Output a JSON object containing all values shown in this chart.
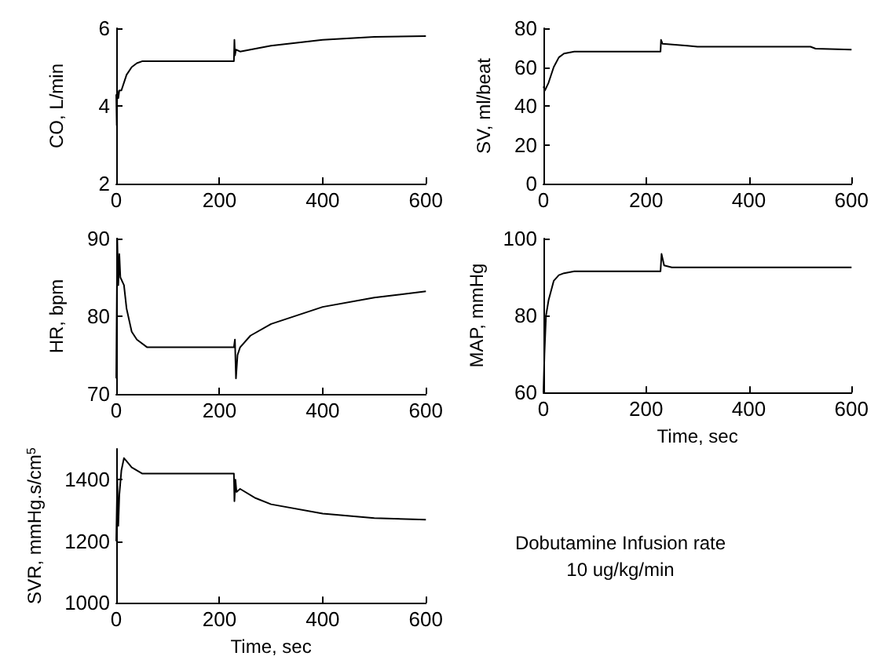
{
  "chart_data": [
    {
      "type": "line",
      "ylabel": "CO, L/min",
      "color": "#000000",
      "xlim": [
        0,
        600
      ],
      "xticks": [
        0,
        200,
        400,
        600
      ],
      "ylim": [
        2,
        6
      ],
      "yticks": [
        2,
        4,
        6
      ],
      "x": [
        0,
        1,
        2,
        4,
        6,
        10,
        20,
        30,
        40,
        50,
        100,
        228,
        229,
        230,
        232,
        240,
        300,
        400,
        500,
        600
      ],
      "values": [
        4.3,
        3.5,
        4.4,
        4.2,
        4.4,
        4.4,
        4.8,
        5.0,
        5.1,
        5.15,
        5.15,
        5.15,
        5.7,
        5.3,
        5.45,
        5.4,
        5.55,
        5.7,
        5.78,
        5.8
      ]
    },
    {
      "type": "line",
      "ylabel": "SV, ml/beat",
      "color": "#000000",
      "xlim": [
        0,
        600
      ],
      "xticks": [
        0,
        200,
        400,
        600
      ],
      "ylim": [
        0,
        80
      ],
      "yticks": [
        0,
        20,
        40,
        60,
        80
      ],
      "x": [
        0,
        3,
        10,
        20,
        30,
        40,
        60,
        228,
        229,
        232,
        280,
        300,
        520,
        530,
        600
      ],
      "values": [
        50,
        48,
        52,
        60,
        65,
        67,
        68,
        68,
        74,
        72,
        71,
        70.5,
        70.5,
        69.5,
        69
      ]
    },
    {
      "type": "line",
      "ylabel": "HR, bpm",
      "color": "#000000",
      "xlim": [
        0,
        600
      ],
      "xticks": [
        0,
        200,
        400,
        600
      ],
      "ylim": [
        70,
        90
      ],
      "yticks": [
        70,
        80,
        90
      ],
      "x": [
        0,
        2,
        4,
        6,
        8,
        10,
        15,
        20,
        30,
        40,
        60,
        228,
        230,
        232,
        235,
        240,
        260,
        300,
        400,
        500,
        600
      ],
      "values": [
        72,
        90,
        84,
        88,
        85,
        85,
        84,
        81,
        78,
        77,
        76,
        76,
        77,
        72,
        75,
        76,
        77.5,
        79,
        81.2,
        82.4,
        83.2
      ]
    },
    {
      "type": "line",
      "ylabel": "MAP, mmHg",
      "xlabel": "Time, sec",
      "color": "#000000",
      "xlim": [
        0,
        600
      ],
      "xticks": [
        0,
        200,
        400,
        600
      ],
      "ylim": [
        60,
        100
      ],
      "yticks": [
        60,
        80,
        100
      ],
      "x": [
        0,
        2,
        5,
        10,
        20,
        30,
        40,
        60,
        228,
        230,
        235,
        250,
        600
      ],
      "values": [
        60,
        70,
        80,
        84,
        89,
        90.5,
        91,
        91.5,
        91.5,
        96,
        93,
        92.5,
        92.5
      ]
    },
    {
      "type": "line",
      "ylabel": "SVR, mmHg.s/cm$^{5}$",
      "xlabel": "Time, sec",
      "color": "#000000",
      "xlim": [
        0,
        600
      ],
      "xticks": [
        0,
        200,
        400,
        600
      ],
      "ylim": [
        1000,
        1500
      ],
      "yticks": [
        1000,
        1200,
        1400
      ],
      "x": [
        0,
        2,
        4,
        6,
        10,
        15,
        20,
        30,
        50,
        228,
        229,
        231,
        233,
        240,
        270,
        300,
        400,
        500,
        600
      ],
      "values": [
        1200,
        1400,
        1250,
        1350,
        1430,
        1470,
        1460,
        1440,
        1420,
        1420,
        1330,
        1400,
        1360,
        1370,
        1340,
        1320,
        1290,
        1275,
        1270
      ]
    },
    {
      "type": "other",
      "annotations": [
        "Dobutamine Infusion rate",
        "10 ug/kg/min"
      ]
    }
  ]
}
